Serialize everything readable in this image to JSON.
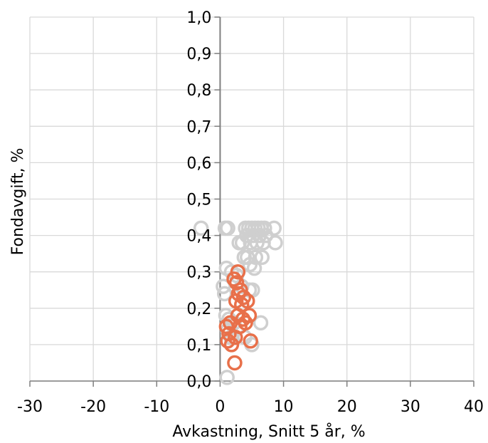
{
  "chart_data": {
    "type": "scatter",
    "xlabel": "Avkastning, Snitt 5 år, %",
    "ylabel": "Fondavgift, %",
    "xlim": [
      -30,
      40
    ],
    "ylim": [
      0.0,
      1.0
    ],
    "x_ticks": [
      "-30",
      "-20",
      "-10",
      "0",
      "10",
      "20",
      "30",
      "40"
    ],
    "y_ticks": [
      "0,0",
      "0,1",
      "0,2",
      "0,3",
      "0,4",
      "0,5",
      "0,6",
      "0,7",
      "0,8",
      "0,9",
      "1,0"
    ],
    "x_tick_values": [
      -30,
      -20,
      -10,
      0,
      10,
      20,
      30,
      40
    ],
    "y_tick_values": [
      0.0,
      0.1,
      0.2,
      0.3,
      0.4,
      0.5,
      0.6,
      0.7,
      0.8,
      0.9,
      1.0
    ],
    "grid": true,
    "legend": "none",
    "colors": {
      "grey_marker": "#cfcfcf",
      "orange_marker": "#e8704a",
      "grid": "#d9d9d9",
      "axis": "#7f7f7f"
    },
    "series": [
      {
        "color": "#cfcfcf",
        "x": [
          -3.0,
          0.8,
          1.2,
          4.0,
          4.5,
          5.0,
          5.5,
          6.0,
          6.5,
          7.0,
          8.5,
          4.2,
          5.2,
          6.2,
          7.2,
          8.7,
          3.0,
          3.5,
          4.8,
          5.8,
          6.8,
          3.8,
          4.3,
          5.6,
          6.6,
          4.7,
          5.4,
          1.0,
          1.8,
          2.6,
          0.5,
          0.7,
          3.4,
          4.6,
          5.1,
          0.9,
          1.4,
          2.2,
          3.1,
          1.2,
          6.4,
          1.7,
          3.9,
          5.0,
          1.1
        ],
        "y": [
          0.42,
          0.42,
          0.42,
          0.42,
          0.42,
          0.42,
          0.42,
          0.42,
          0.42,
          0.42,
          0.42,
          0.4,
          0.4,
          0.4,
          0.4,
          0.38,
          0.38,
          0.38,
          0.38,
          0.38,
          0.38,
          0.34,
          0.34,
          0.34,
          0.34,
          0.32,
          0.31,
          0.31,
          0.3,
          0.29,
          0.26,
          0.24,
          0.26,
          0.25,
          0.25,
          0.18,
          0.17,
          0.16,
          0.15,
          0.14,
          0.16,
          0.12,
          0.12,
          0.1,
          0.01
        ]
      },
      {
        "color": "#e8704a",
        "x": [
          2.8,
          2.2,
          2.6,
          3.2,
          2.9,
          3.7,
          2.5,
          3.4,
          4.3,
          2.8,
          3.6,
          4.6,
          1.0,
          1.6,
          3.1,
          4.0,
          1.4,
          2.4,
          1.2,
          1.8,
          4.8,
          2.3
        ],
        "y": [
          0.3,
          0.28,
          0.27,
          0.25,
          0.24,
          0.23,
          0.22,
          0.21,
          0.22,
          0.18,
          0.17,
          0.18,
          0.15,
          0.16,
          0.15,
          0.16,
          0.13,
          0.12,
          0.11,
          0.1,
          0.11,
          0.05
        ]
      }
    ]
  }
}
